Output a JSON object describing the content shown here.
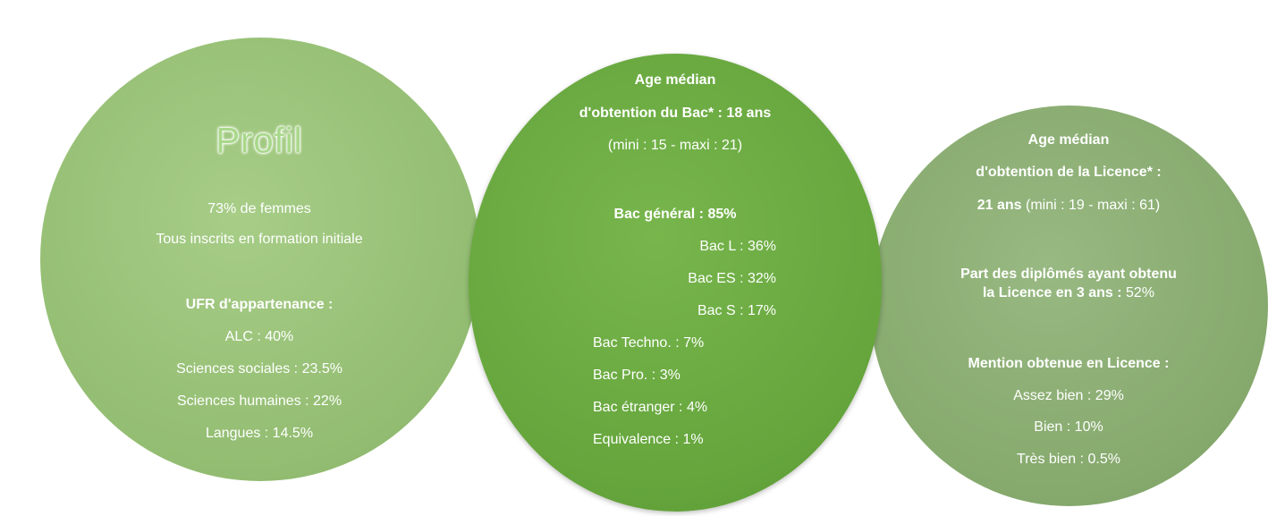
{
  "circles": [
    {
      "title": "Profil",
      "lines": [
        {
          "t": "73% de femmes"
        },
        {
          "t": "Tous inscrits en formation initiale"
        },
        {
          "b": "UFR d'appartenance :"
        },
        {
          "t": "ALC : 40%"
        },
        {
          "t": "Sciences sociales : 23.5%"
        },
        {
          "t": "Sciences humaines : 22%"
        },
        {
          "t": "Langues : 14.5%"
        }
      ]
    },
    {
      "lines": [
        {
          "b": "Age médian"
        },
        {
          "b": "d'obtention du Bac* : 18 ans"
        },
        {
          "t": "(mini : 15 - maxi : 21)"
        },
        {
          "b": "Bac général : 85%"
        },
        {
          "t": "Bac L : 36%"
        },
        {
          "t": "Bac ES : 32%"
        },
        {
          "t": "Bac S : 17%"
        },
        {
          "t": "Bac Techno. : 7%"
        },
        {
          "t": "Bac Pro. : 3%"
        },
        {
          "t": "Bac étranger : 4%"
        },
        {
          "t": "Equivalence : 1%"
        }
      ]
    },
    {
      "lines": [
        {
          "b": "Age médian"
        },
        {
          "b": "d'obtention de la Licence* :"
        },
        {
          "b": "21 ans",
          "t": " (mini : 19 - maxi : 61)"
        },
        {
          "b": "Part des diplômés ayant obtenu"
        },
        {
          "b": "la Licence en 3 ans :",
          "t": " 52%"
        },
        {
          "b": "Mention obtenue en Licence :"
        },
        {
          "t": "Assez bien : 29%"
        },
        {
          "t": "Bien : 10%"
        },
        {
          "t": "Très bien : 0.5%"
        }
      ]
    }
  ]
}
